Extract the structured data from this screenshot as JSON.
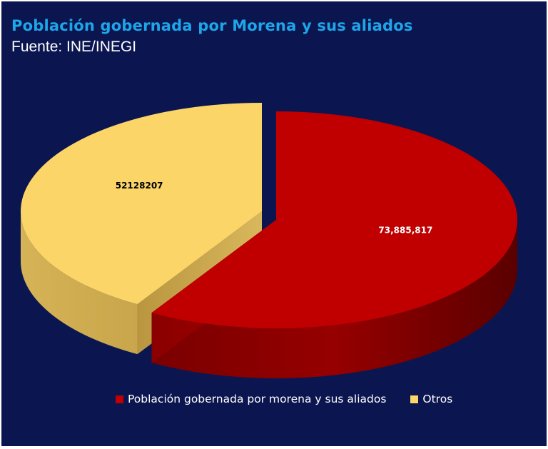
{
  "header": {
    "title": "Población gobernada por Morena y sus aliados",
    "subtitle": "Fuente: INE/INEGI"
  },
  "chart_data": {
    "type": "pie",
    "style": "3d-exploded",
    "series": [
      {
        "name": "Población gobernada por morena y sus aliados",
        "value": 73885817,
        "label": "73,885,817",
        "color": "#c00000"
      },
      {
        "name": "Otros",
        "value": 52128207,
        "label": "52128207",
        "color": "#fbd568"
      }
    ],
    "legend": "bottom"
  },
  "legend": {
    "items": [
      {
        "label": "Población gobernada por morena y sus aliados",
        "color": "#c00000"
      },
      {
        "label": "Otros",
        "color": "#fbd568"
      }
    ]
  }
}
